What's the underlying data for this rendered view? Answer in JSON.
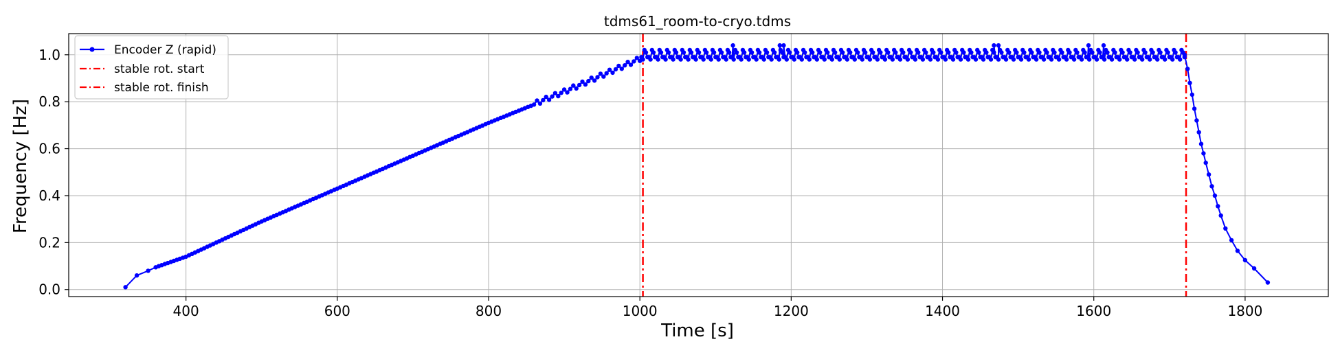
{
  "chart_data": {
    "type": "line",
    "title": "tdms61_room-to-cryo.tdms",
    "xlabel": "Time [s]",
    "ylabel": "Frequency [Hz]",
    "xlim": [
      245,
      1910
    ],
    "ylim": [
      -0.03,
      1.09
    ],
    "xticks": [
      400,
      600,
      800,
      1000,
      1200,
      1400,
      1600,
      1800
    ],
    "yticks": [
      0.0,
      0.2,
      0.4,
      0.6,
      0.8,
      1.0
    ],
    "grid": true,
    "legend_position": "top-left",
    "series": [
      {
        "name": "Encoder Z (rapid)",
        "color": "#0000ff",
        "style": "line-with-markers",
        "ramp_up": {
          "x_start": 320,
          "x_end": 1000,
          "step": 4,
          "anchors": [
            [
              320,
              0.01
            ],
            [
              335,
              0.06
            ],
            [
              350,
              0.08
            ],
            [
              360,
              0.095
            ],
            [
              400,
              0.14
            ],
            [
              500,
              0.29
            ],
            [
              600,
              0.43
            ],
            [
              700,
              0.57
            ],
            [
              800,
              0.71
            ],
            [
              900,
              0.84
            ],
            [
              950,
              0.91
            ],
            [
              1000,
              0.98
            ]
          ]
        },
        "plateau": {
          "x_start": 1000,
          "x_end": 1720,
          "step": 2,
          "values": [
            0.99,
            1.01,
            1.02,
            0.98
          ],
          "outliers": [
            [
              1123,
              1.04
            ],
            [
              1185,
              1.04
            ],
            [
              1190,
              1.04
            ],
            [
              1468,
              1.04
            ],
            [
              1474,
              1.04
            ],
            [
              1593,
              1.04
            ],
            [
              1613,
              1.04
            ]
          ]
        },
        "ramp_down": [
          [
            1720,
            1.0
          ],
          [
            1724,
            0.94
          ],
          [
            1727,
            0.88
          ],
          [
            1730,
            0.83
          ],
          [
            1733,
            0.77
          ],
          [
            1736,
            0.72
          ],
          [
            1739,
            0.67
          ],
          [
            1742,
            0.62
          ],
          [
            1745,
            0.58
          ],
          [
            1748,
            0.54
          ],
          [
            1752,
            0.49
          ],
          [
            1756,
            0.44
          ],
          [
            1760,
            0.4
          ],
          [
            1764,
            0.355
          ],
          [
            1768,
            0.315
          ],
          [
            1774,
            0.26
          ],
          [
            1782,
            0.21
          ],
          [
            1790,
            0.165
          ],
          [
            1800,
            0.125
          ],
          [
            1812,
            0.09
          ],
          [
            1830,
            0.03
          ]
        ]
      }
    ],
    "vlines": [
      {
        "name": "stable rot. start",
        "x": 1004,
        "color": "#ff0000",
        "style": "dash-dot"
      },
      {
        "name": "stable rot. finish",
        "x": 1722,
        "color": "#ff0000",
        "style": "dash-dot"
      }
    ]
  }
}
